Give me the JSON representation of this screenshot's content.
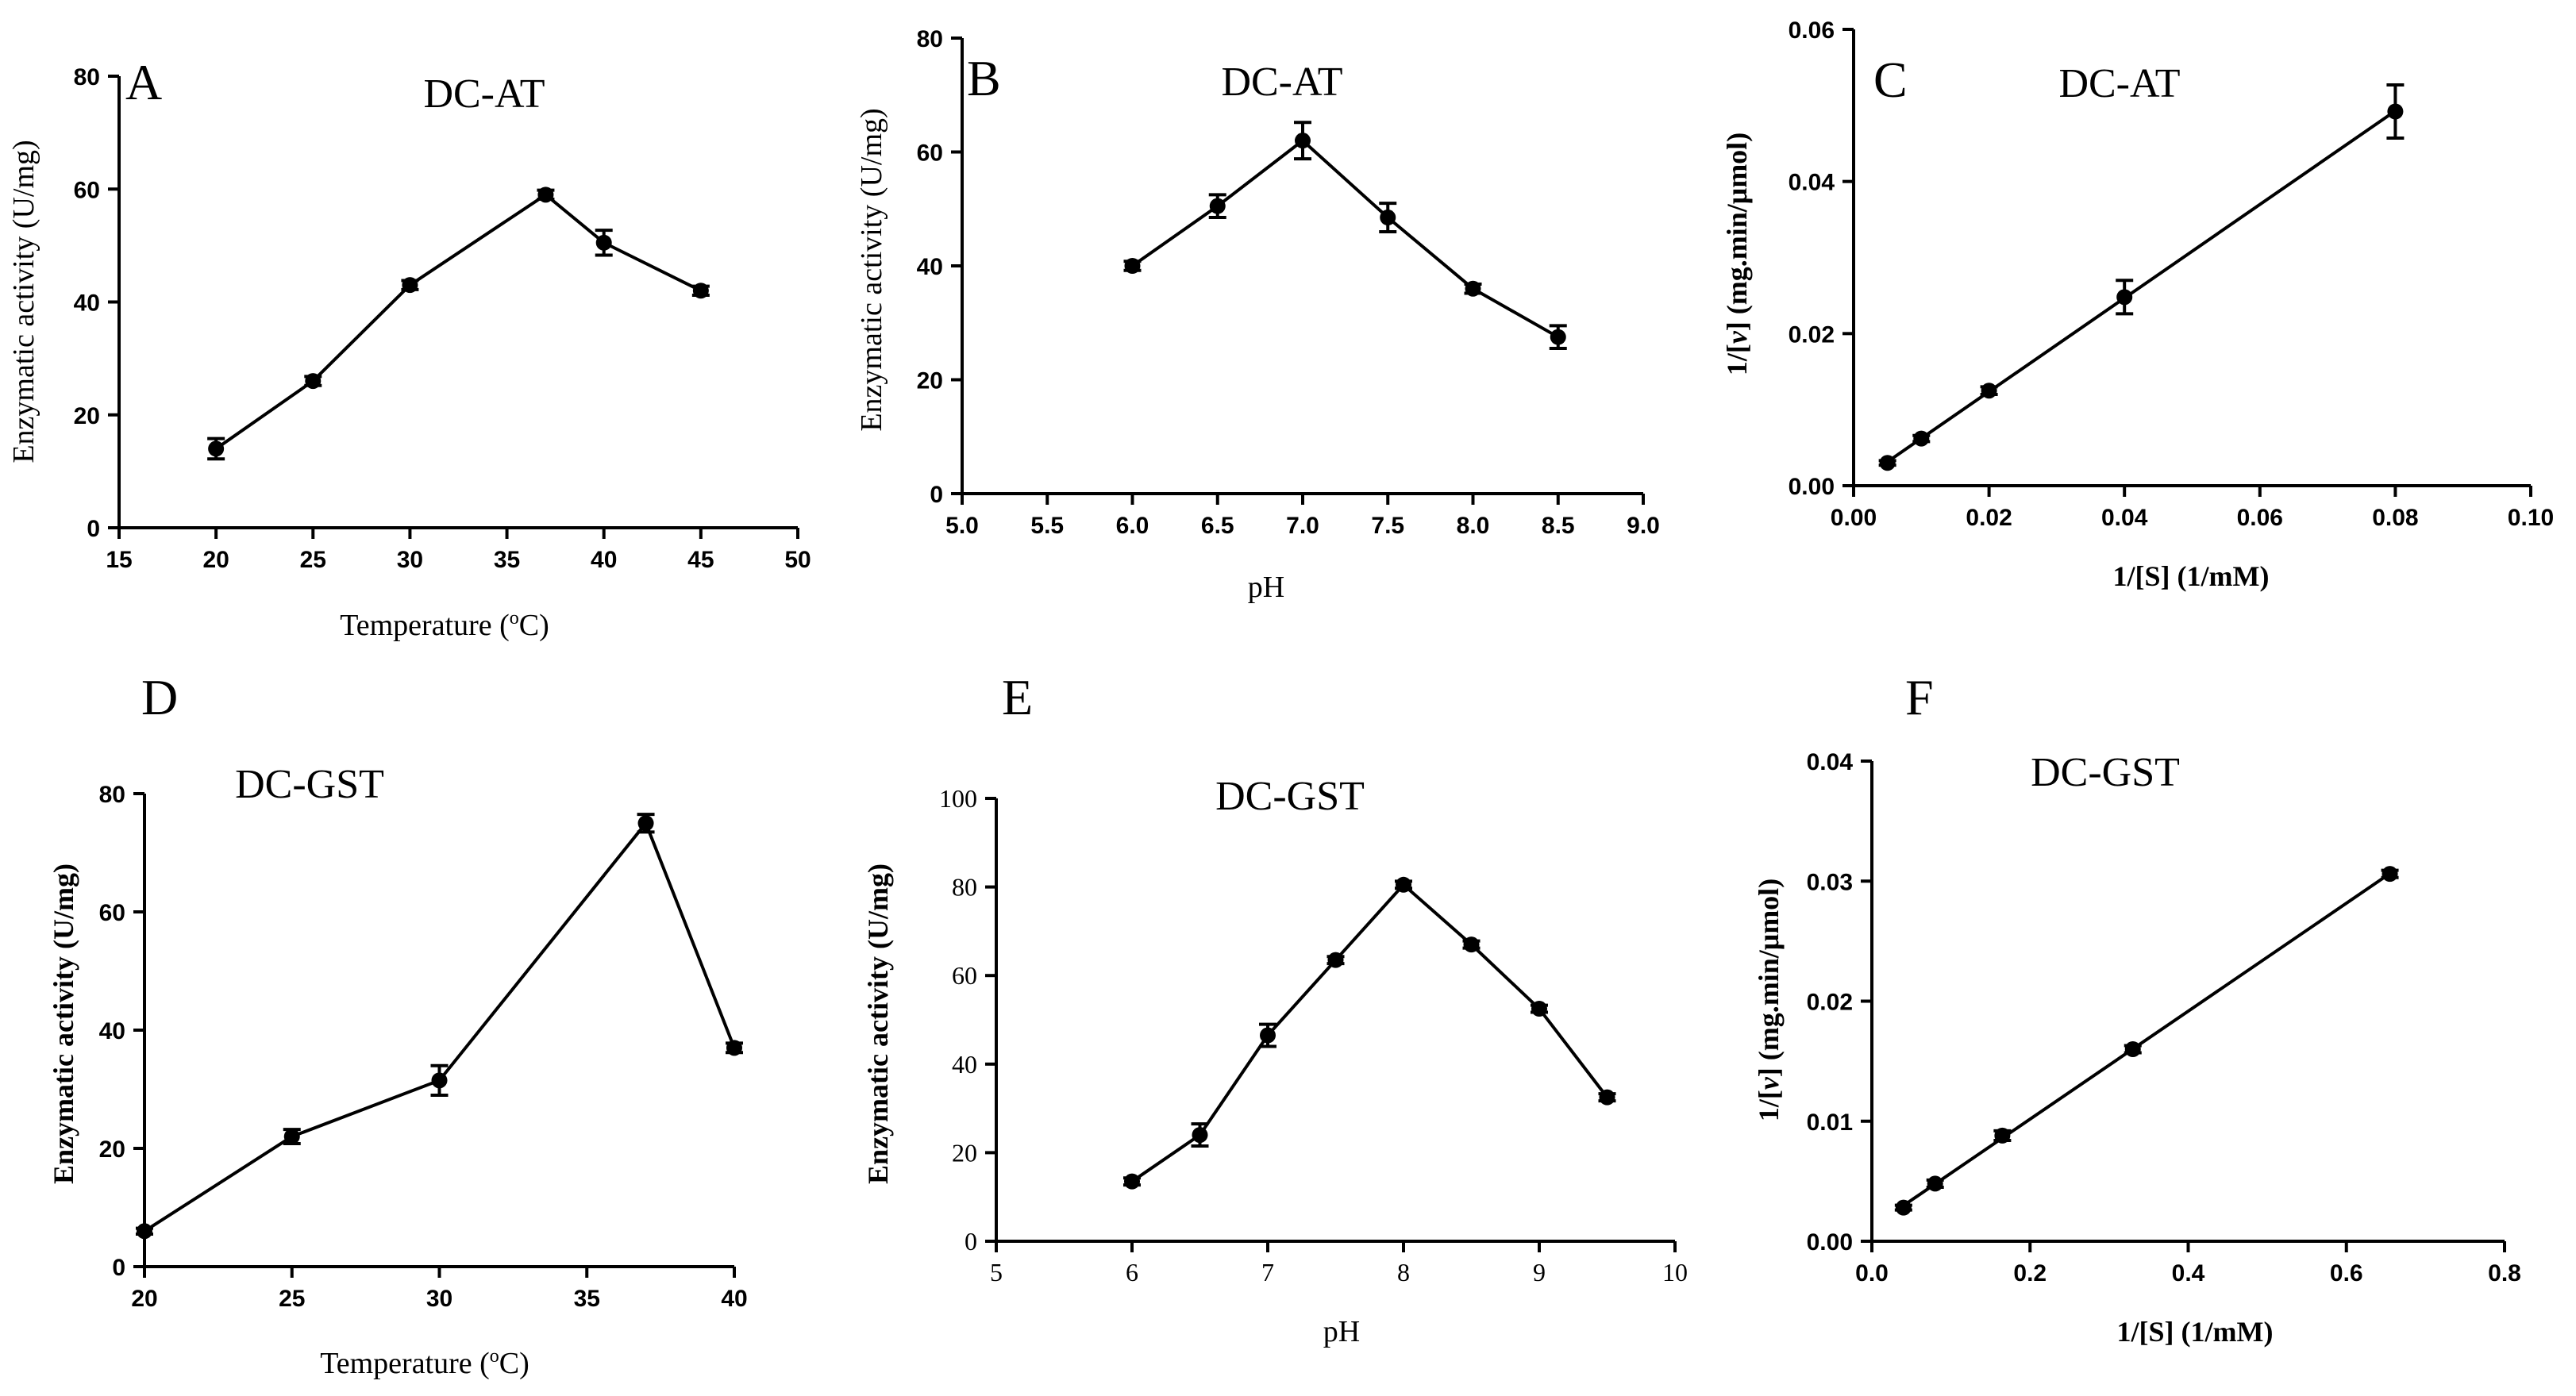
{
  "chart_data": [
    {
      "id": "A",
      "type": "line",
      "letter": "A",
      "title": "DC-AT",
      "xlabel": "Temperature (",
      "xlabel_sup": "o",
      "xlabel_end": "C)",
      "ylabel": "Enzymatic activity (U/mg)",
      "xlim": [
        15,
        50
      ],
      "ylim": [
        0,
        80
      ],
      "xticks": [
        15,
        20,
        25,
        30,
        35,
        40,
        45,
        50
      ],
      "yticks": [
        0,
        20,
        40,
        60,
        80
      ],
      "x": [
        20,
        25,
        30,
        37,
        40,
        45
      ],
      "y": [
        14,
        26,
        43,
        59,
        50.5,
        42
      ],
      "err": [
        1.8,
        0.8,
        0.8,
        0.8,
        2.2,
        0.8
      ],
      "fit": false
    },
    {
      "id": "B",
      "type": "line",
      "letter": "B",
      "title": "DC-AT",
      "xlabel": "pH",
      "ylabel": "Enzymatic activity (U/mg)",
      "xlim": [
        5.0,
        9.0
      ],
      "ylim": [
        0,
        80
      ],
      "xticks": [
        "5.0",
        "5.5",
        "6.0",
        "6.5",
        "7.0",
        "7.5",
        "8.0",
        "8.5",
        "9.0"
      ],
      "yticks": [
        0,
        20,
        40,
        60,
        80
      ],
      "x": [
        6.0,
        6.5,
        7.0,
        7.5,
        8.0,
        8.5
      ],
      "y": [
        40,
        50.5,
        62,
        48.5,
        36,
        27.5
      ],
      "err": [
        0.8,
        2.0,
        3.2,
        2.5,
        0.8,
        2.0
      ],
      "fit": false
    },
    {
      "id": "C",
      "type": "scatter",
      "letter": "C",
      "title": "DC-AT",
      "xlabel": "1/[S] (1/mM)",
      "ylabel_pre": "1/[",
      "ylabel_v": "v",
      "ylabel_post": "] (mg.min/μmol)",
      "xlim": [
        0.0,
        0.1
      ],
      "ylim": [
        0.0,
        0.06
      ],
      "xticks": [
        "0.00",
        "0.02",
        "0.04",
        "0.06",
        "0.08",
        "0.10"
      ],
      "yticks": [
        "0.00",
        "0.02",
        "0.04",
        "0.06"
      ],
      "x": [
        0.005,
        0.01,
        0.02,
        0.04,
        0.08
      ],
      "y": [
        0.003,
        0.0062,
        0.0125,
        0.0248,
        0.0492
      ],
      "err": [
        0.0003,
        0.0004,
        0.0005,
        0.0022,
        0.0035
      ],
      "fit": true
    },
    {
      "id": "D",
      "type": "line",
      "letter": "D",
      "title": "DC-GST",
      "xlabel": "Temperature (",
      "xlabel_sup": "o",
      "xlabel_end": "C)",
      "ylabel": "Enzymatic activity (U/mg)",
      "xlim": [
        20,
        40
      ],
      "ylim": [
        0,
        80
      ],
      "xticks": [
        20,
        25,
        30,
        35,
        40
      ],
      "yticks": [
        0,
        20,
        40,
        60,
        80
      ],
      "x": [
        20,
        25,
        30,
        37,
        40
      ],
      "y": [
        6,
        22,
        31.5,
        75,
        37
      ],
      "err": [
        0.5,
        1.2,
        2.5,
        1.5,
        0.8
      ],
      "fit": false
    },
    {
      "id": "E",
      "type": "line",
      "letter": "E",
      "title": "DC-GST",
      "xlabel": "pH",
      "ylabel": "Enzymatic activity (U/mg)",
      "xlim": [
        5,
        10
      ],
      "ylim": [
        0,
        100
      ],
      "xticks": [
        5,
        6,
        7,
        8,
        9,
        10
      ],
      "yticks": [
        0,
        20,
        40,
        60,
        80,
        100
      ],
      "x": [
        6,
        6.5,
        7,
        7.5,
        8,
        8.5,
        9,
        9.5
      ],
      "y": [
        13.5,
        24,
        46.5,
        63.5,
        80.5,
        67,
        52.5,
        32.5
      ],
      "err": [
        0.8,
        2.5,
        2.5,
        0.8,
        0.8,
        0.8,
        0.8,
        0.8
      ],
      "fit": false
    },
    {
      "id": "F",
      "type": "scatter",
      "letter": "F",
      "title": "DC-GST",
      "xlabel": "1/[S] (1/mM)",
      "ylabel_pre": "1/[",
      "ylabel_v": "v",
      "ylabel_post": "] (mg.min/μmol)",
      "xlim": [
        0.0,
        0.8
      ],
      "ylim": [
        0.0,
        0.04
      ],
      "xticks": [
        "0.0",
        "0.2",
        "0.4",
        "0.6",
        "0.8"
      ],
      "yticks": [
        "0.00",
        "0.01",
        "0.02",
        "0.03",
        "0.04"
      ],
      "x": [
        0.04,
        0.08,
        0.165,
        0.33,
        0.655
      ],
      "y": [
        0.0028,
        0.0048,
        0.0088,
        0.016,
        0.0306
      ],
      "err": [
        0.0002,
        0.0003,
        0.0004,
        0.0003,
        0.0003
      ],
      "fit": true
    }
  ]
}
